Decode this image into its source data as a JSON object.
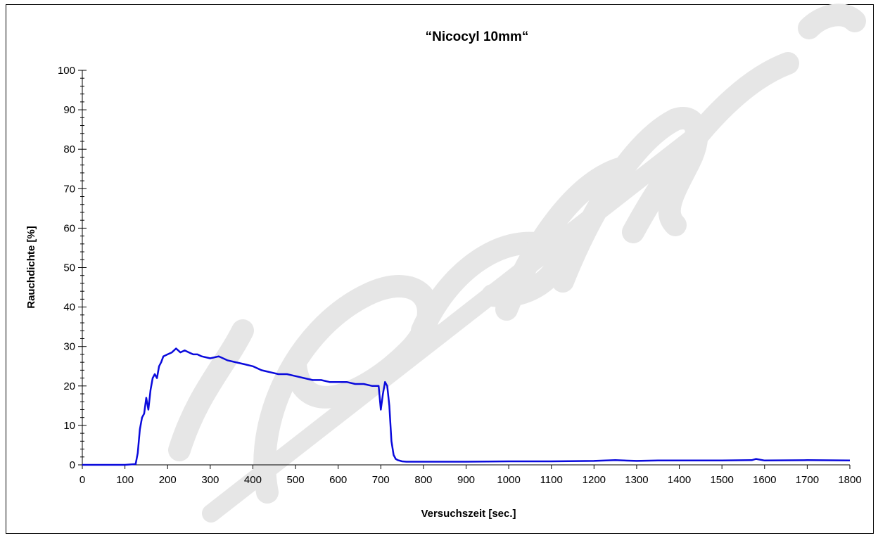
{
  "chart_data": {
    "type": "line",
    "title": "“Nicocyl 10mm“",
    "xlabel": "Versuchszeit [sec.]",
    "ylabel": "Rauchdichte [%]",
    "xlim": [
      0,
      1800
    ],
    "ylim": [
      0,
      100
    ],
    "x_ticks": [
      "0",
      "100",
      "200",
      "300",
      "400",
      "500",
      "600",
      "700",
      "800",
      "900",
      "1000",
      "1100",
      "1200",
      "1300",
      "1400",
      "1500",
      "1600",
      "1700",
      "1800"
    ],
    "y_ticks": [
      "0",
      "10",
      "20",
      "30",
      "40",
      "50",
      "60",
      "70",
      "80",
      "90",
      "100"
    ],
    "grid": false,
    "legend": "none",
    "series_color": "#0a0adc",
    "watermark_color": "#e6e6e6",
    "x": [
      0,
      100,
      125,
      130,
      135,
      140,
      145,
      150,
      155,
      160,
      165,
      170,
      175,
      180,
      185,
      190,
      200,
      210,
      220,
      230,
      240,
      250,
      260,
      270,
      280,
      300,
      320,
      340,
      360,
      380,
      400,
      420,
      440,
      460,
      480,
      500,
      520,
      540,
      560,
      580,
      600,
      620,
      640,
      660,
      680,
      695,
      700,
      705,
      710,
      715,
      720,
      725,
      730,
      735,
      740,
      750,
      760,
      800,
      900,
      1000,
      1100,
      1200,
      1250,
      1300,
      1350,
      1400,
      1500,
      1570,
      1580,
      1600,
      1700,
      1800
    ],
    "y": [
      0,
      0,
      0.2,
      3,
      9,
      12,
      13,
      17,
      14,
      19,
      22,
      23,
      22,
      25,
      26,
      27.5,
      28,
      28.5,
      29.5,
      28.5,
      29,
      28.5,
      28,
      28,
      27.5,
      27,
      27.5,
      26.5,
      26,
      25.5,
      25,
      24,
      23.5,
      23,
      23,
      22.5,
      22,
      21.5,
      21.5,
      21,
      21,
      21,
      20.5,
      20.5,
      20,
      20,
      14,
      18,
      21,
      20,
      15,
      6,
      2.5,
      1.5,
      1.2,
      0.9,
      0.8,
      0.8,
      0.8,
      0.9,
      0.9,
      1,
      1.2,
      1,
      1.1,
      1.1,
      1.1,
      1.2,
      1.5,
      1.1,
      1.2,
      1.1
    ]
  }
}
